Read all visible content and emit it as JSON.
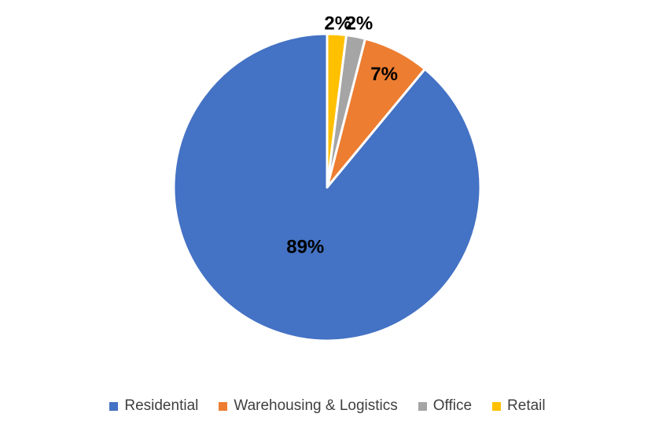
{
  "chart_data": {
    "type": "pie",
    "categories": [
      "Residential",
      "Warehousing & Logistics",
      "Office",
      "Retail"
    ],
    "values": [
      89,
      7,
      2,
      2
    ],
    "data_labels": [
      "89%",
      "7%",
      "2%",
      "2%"
    ],
    "colors": [
      "#4472C4",
      "#ED7D31",
      "#A5A5A5",
      "#FFC000"
    ],
    "start_angle": "12 o'clock",
    "direction": "counter-clockwise",
    "legend": "bottom"
  }
}
